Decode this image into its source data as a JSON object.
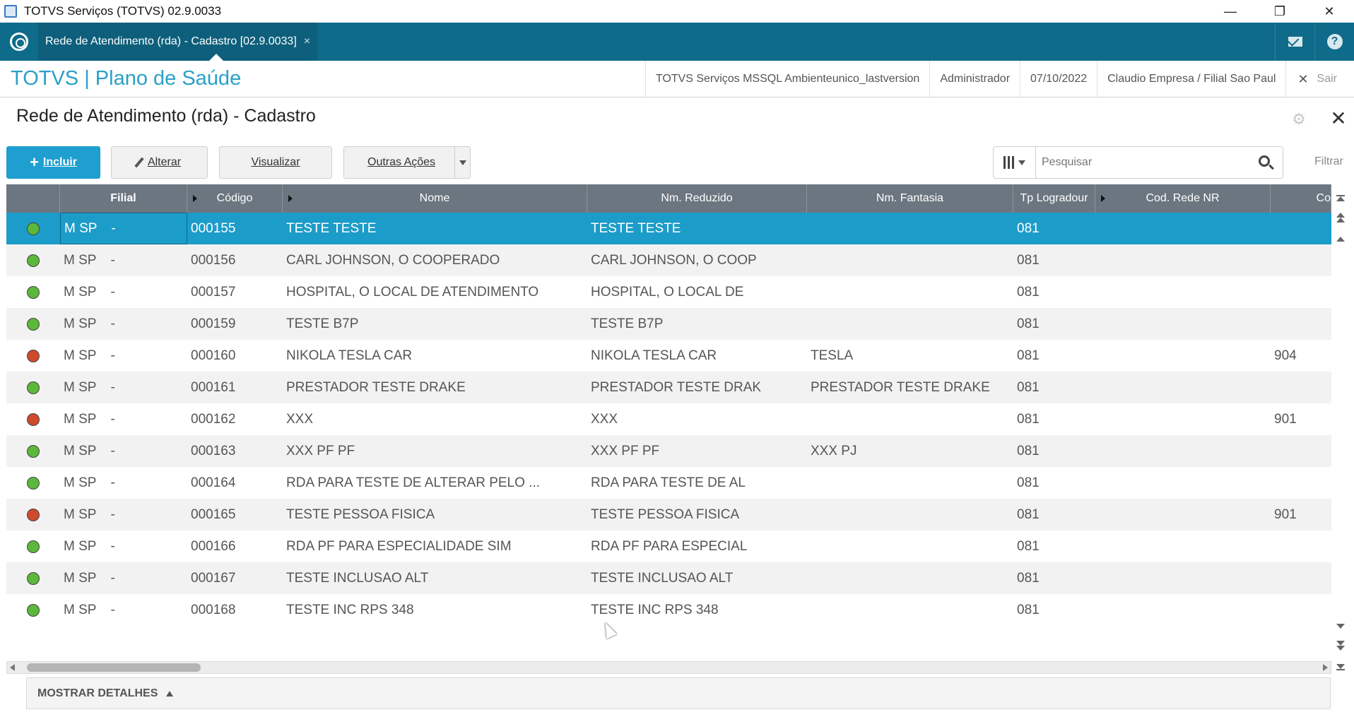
{
  "window": {
    "title": "TOTVS Serviços (TOTVS) 02.9.0033",
    "minimize": "—",
    "restore": "❐",
    "close": "✕"
  },
  "tabbar": {
    "active_tab": "Rede de Atendimento (rda) - Cadastro [02.9.0033]",
    "tab_close": "×"
  },
  "header": {
    "brand": "TOTVS | Plano de Saúde",
    "environment": "TOTVS Serviços MSSQL Ambienteunico_lastversion",
    "user": "Administrador",
    "date": "07/10/2022",
    "company": "Claudio Empresa / Filial Sao Paul",
    "logout_icon": "✕",
    "logout": "Sair"
  },
  "page": {
    "title": "Rede de Atendimento (rda) - Cadastro",
    "close_icon": "✕",
    "gear_icon": "⚙"
  },
  "toolbar": {
    "incluir": "Incluir",
    "incluir_plus": "+",
    "alterar": "Alterar",
    "visualizar": "Visualizar",
    "outras_acoes": "Outras Ações",
    "search_placeholder": "Pesquisar",
    "filtrar": "Filtrar"
  },
  "grid": {
    "columns": [
      "",
      "Filial",
      "Código",
      "Nome",
      "Nm. Reduzido",
      "Nm. Fantasia",
      "Tp Logradour",
      "Cod. Rede NR",
      "Co"
    ],
    "rows": [
      {
        "status": "green",
        "filial": "M SP",
        "sep": "-",
        "codigo": "000155",
        "nome": "TESTE TESTE",
        "reduzido": "TESTE TESTE",
        "fantasia": "",
        "tplog": "081",
        "rede": "",
        "extra": "",
        "selected": true
      },
      {
        "status": "green",
        "filial": "M SP",
        "sep": "-",
        "codigo": "000156",
        "nome": "CARL JOHNSON, O COOPERADO",
        "reduzido": "CARL JOHNSON, O COOP",
        "fantasia": "",
        "tplog": "081",
        "rede": "",
        "extra": ""
      },
      {
        "status": "green",
        "filial": "M SP",
        "sep": "-",
        "codigo": "000157",
        "nome": "HOSPITAL, O LOCAL DE ATENDIMENTO",
        "reduzido": "HOSPITAL, O LOCAL DE",
        "fantasia": "",
        "tplog": "081",
        "rede": "",
        "extra": ""
      },
      {
        "status": "green",
        "filial": "M SP",
        "sep": "-",
        "codigo": "000159",
        "nome": "TESTE B7P",
        "reduzido": "TESTE B7P",
        "fantasia": "",
        "tplog": "081",
        "rede": "",
        "extra": ""
      },
      {
        "status": "red",
        "filial": "M SP",
        "sep": "-",
        "codigo": "000160",
        "nome": "NIKOLA TESLA CAR",
        "reduzido": "NIKOLA TESLA CAR",
        "fantasia": "TESLA",
        "tplog": "081",
        "rede": "",
        "extra": "904"
      },
      {
        "status": "green",
        "filial": "M SP",
        "sep": "-",
        "codigo": "000161",
        "nome": "PRESTADOR TESTE DRAKE",
        "reduzido": "PRESTADOR TESTE DRAK",
        "fantasia": "PRESTADOR TESTE DRAKE",
        "tplog": "081",
        "rede": "",
        "extra": ""
      },
      {
        "status": "red",
        "filial": "M SP",
        "sep": "-",
        "codigo": "000162",
        "nome": "XXX",
        "reduzido": "XXX",
        "fantasia": "",
        "tplog": "081",
        "rede": "",
        "extra": "901"
      },
      {
        "status": "green",
        "filial": "M SP",
        "sep": "-",
        "codigo": "000163",
        "nome": "XXX PF PF",
        "reduzido": "XXX PF PF",
        "fantasia": "XXX PJ",
        "tplog": "081",
        "rede": "",
        "extra": ""
      },
      {
        "status": "green",
        "filial": "M SP",
        "sep": "-",
        "codigo": "000164",
        "nome": "RDA PARA TESTE DE ALTERAR PELO ...",
        "reduzido": "RDA PARA TESTE DE AL",
        "fantasia": "",
        "tplog": "081",
        "rede": "",
        "extra": ""
      },
      {
        "status": "red",
        "filial": "M SP",
        "sep": "-",
        "codigo": "000165",
        "nome": "TESTE PESSOA FISICA",
        "reduzido": "TESTE PESSOA FISICA",
        "fantasia": "",
        "tplog": "081",
        "rede": "",
        "extra": "901"
      },
      {
        "status": "green",
        "filial": "M SP",
        "sep": "-",
        "codigo": "000166",
        "nome": "RDA PF PARA ESPECIALIDADE SIM",
        "reduzido": "RDA PF PARA ESPECIAL",
        "fantasia": "",
        "tplog": "081",
        "rede": "",
        "extra": ""
      },
      {
        "status": "green",
        "filial": "M SP",
        "sep": "-",
        "codigo": "000167",
        "nome": "TESTE INCLUSAO ALT",
        "reduzido": "TESTE INCLUSAO ALT",
        "fantasia": "",
        "tplog": "081",
        "rede": "",
        "extra": ""
      },
      {
        "status": "green",
        "filial": "M SP",
        "sep": "-",
        "codigo": "000168",
        "nome": "TESTE INC RPS 348",
        "reduzido": "TESTE INC RPS 348",
        "fantasia": "",
        "tplog": "081",
        "rede": "",
        "extra": ""
      }
    ]
  },
  "footer": {
    "details": "MOSTRAR DETALHES"
  },
  "colors": {
    "accent": "#1c9cc9",
    "tabbar": "#0f6b8a",
    "grid_header": "#6b7680",
    "status_green": "#5cb83a",
    "status_red": "#cf4a2c"
  },
  "icons": {
    "app": "app-window-icon",
    "logo": "totvs-logo-icon",
    "mail": "mail-icon",
    "help": "help-icon",
    "search": "search-icon",
    "columns": "columns-icon"
  }
}
